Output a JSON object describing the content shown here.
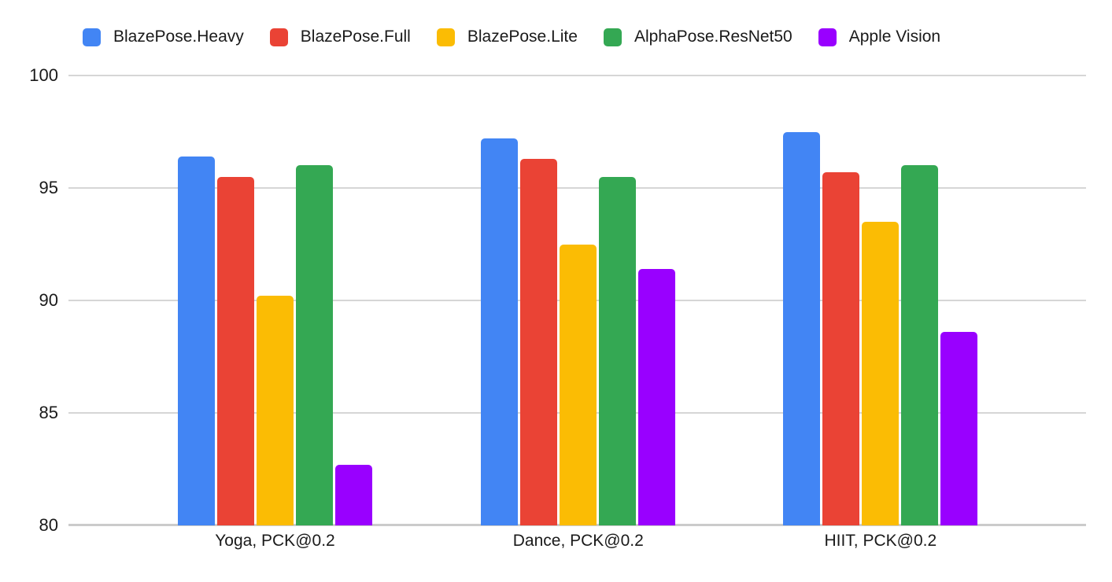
{
  "chart_data": {
    "type": "bar",
    "title": "",
    "xlabel": "",
    "ylabel": "",
    "categories": [
      "Yoga, PCK@0.2",
      "Dance, PCK@0.2",
      "HIIT, PCK@0.2"
    ],
    "series": [
      {
        "name": "BlazePose.Heavy",
        "color": "#4285F4",
        "values": [
          96.4,
          97.2,
          97.5
        ]
      },
      {
        "name": "BlazePose.Full",
        "color": "#EA4335",
        "values": [
          95.5,
          96.3,
          95.7
        ]
      },
      {
        "name": "BlazePose.Lite",
        "color": "#FBBC04",
        "values": [
          90.2,
          92.5,
          93.5
        ]
      },
      {
        "name": "AlphaPose.ResNet50",
        "color": "#34A853",
        "values": [
          96.0,
          95.5,
          96.0
        ]
      },
      {
        "name": "Apple Vision",
        "color": "#9900FF",
        "values": [
          82.7,
          91.4,
          88.6
        ]
      }
    ],
    "ylim": [
      80,
      100
    ],
    "yticks": [
      80,
      85,
      90,
      95,
      100
    ],
    "grid": true,
    "legend_position": "top"
  },
  "colors": {
    "background": "#ffffff",
    "gridline": "#d6d6d6",
    "axis_line": "#cbcbcb",
    "text": "#1a1a1a"
  }
}
